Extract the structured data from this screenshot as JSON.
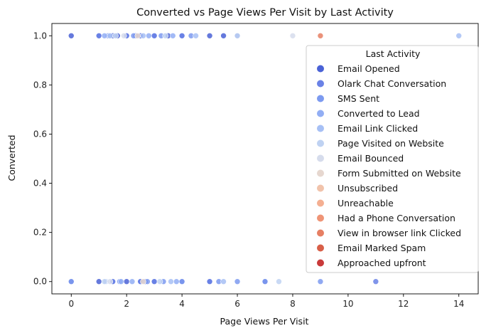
{
  "chart_data": {
    "type": "scatter",
    "title": "Converted vs Page Views Per Visit by Last Activity",
    "xlabel": "Page Views Per Visit",
    "ylabel": "Converted",
    "xlim": [
      -0.7,
      14.7
    ],
    "ylim": [
      -0.05,
      1.05
    ],
    "xticks": [
      0,
      2,
      4,
      6,
      8,
      10,
      12,
      14
    ],
    "yticks": [
      0.0,
      0.2,
      0.4,
      0.6,
      0.8,
      1.0
    ],
    "xtick_labels": [
      "0",
      "2",
      "4",
      "6",
      "8",
      "10",
      "12",
      "14"
    ],
    "ytick_labels": [
      "0.0",
      "0.2",
      "0.4",
      "0.6",
      "0.8",
      "1.0"
    ],
    "grid": false,
    "legend": {
      "title": "Last Activity",
      "placement": "right",
      "entries": [
        "Email Opened",
        "Olark Chat Conversation",
        "SMS Sent",
        "Converted to Lead",
        "Email Link Clicked",
        "Page Visited on Website",
        "Email Bounced",
        "Form Submitted on Website",
        "Unsubscribed",
        "Unreachable",
        "Had a Phone Conversation",
        "View in browser link Clicked",
        "Email Marked Spam",
        "Approached upfront"
      ],
      "colors": [
        "#4a62d6",
        "#6a82e6",
        "#7c9af0",
        "#92aef4",
        "#a7c0f5",
        "#bfd2f2",
        "#d6dcec",
        "#e6d7cf",
        "#f1c3ab",
        "#f4af92",
        "#ef9476",
        "#e67f63",
        "#d85f48",
        "#c93a3a"
      ]
    },
    "series": [
      {
        "name": "Email Opened",
        "x": [
          0,
          1.5,
          2,
          2.5,
          3,
          4,
          5,
          5.5,
          1,
          1.67,
          2.33,
          3.5,
          0,
          1.5,
          2,
          2.5,
          3,
          4,
          5,
          7,
          1,
          2.67
        ],
        "y": [
          1,
          1,
          1,
          1,
          1,
          1,
          1,
          1,
          1,
          1,
          1,
          1,
          0,
          0,
          0,
          0,
          0,
          0,
          0,
          0,
          0,
          0
        ]
      },
      {
        "name": "Olark Chat Conversation",
        "x": [
          1,
          2,
          3,
          4,
          6,
          1.5,
          2.5,
          3,
          5,
          11
        ],
        "y": [
          1,
          1,
          1,
          1,
          1,
          0,
          0,
          0,
          0,
          0
        ]
      },
      {
        "name": "SMS Sent",
        "x": [
          1.33,
          2.25,
          3.25,
          4.33,
          0,
          1.75,
          2.75,
          3.33,
          4,
          5.33,
          6,
          7,
          9
        ],
        "y": [
          1,
          1,
          1,
          1,
          0,
          0,
          0,
          0,
          0,
          0,
          0,
          0,
          0
        ]
      },
      {
        "name": "Converted to Lead",
        "x": [
          1.2,
          2.8,
          3.67,
          1.8,
          2.2,
          3.8
        ],
        "y": [
          1,
          1,
          1,
          0,
          0,
          0
        ]
      },
      {
        "name": "Email Link Clicked",
        "x": [
          1.4,
          2.6,
          4.5,
          14,
          1.25,
          3.6,
          5.5
        ],
        "y": [
          1,
          1,
          1,
          1,
          0,
          0,
          0
        ]
      },
      {
        "name": "Page Visited on Website",
        "x": [
          1.6,
          3.4,
          6,
          1.2,
          3.2,
          7.5
        ],
        "y": [
          1,
          1,
          1,
          0,
          0,
          0
        ]
      },
      {
        "name": "Email Bounced",
        "x": [
          1.9,
          8,
          1.4
        ],
        "y": [
          1,
          1,
          0
        ]
      },
      {
        "name": "Form Submitted on Website",
        "x": [
          2.4,
          2.6
        ],
        "y": [
          1,
          0
        ]
      },
      {
        "name": "Unsubscribed",
        "x": [],
        "y": []
      },
      {
        "name": "Unreachable",
        "x": [],
        "y": []
      },
      {
        "name": "Had a Phone Conversation",
        "x": [],
        "y": []
      },
      {
        "name": "View in browser link Clicked",
        "x": [
          9
        ],
        "y": [
          1
        ]
      },
      {
        "name": "Email Marked Spam",
        "x": [],
        "y": []
      },
      {
        "name": "Approached upfront",
        "x": [],
        "y": []
      }
    ]
  }
}
